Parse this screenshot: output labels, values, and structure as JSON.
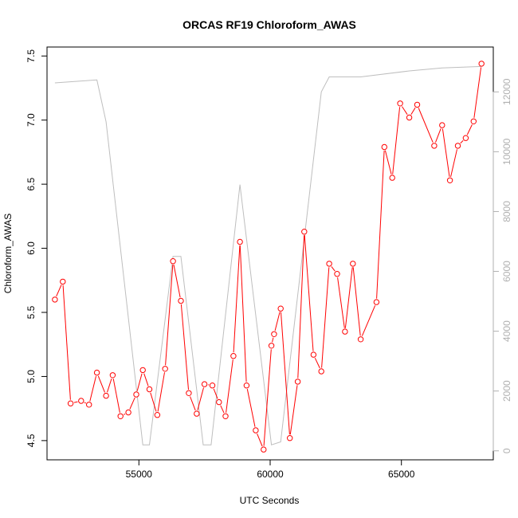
{
  "chart_data": {
    "type": "line",
    "title": "ORCAS RF19 Chloroform_AWAS",
    "xlabel": "UTC Seconds",
    "ylabel": "Chloroform_AWAS",
    "xlim": [
      51500,
      68500
    ],
    "ylim": [
      4.35,
      7.57
    ],
    "y2lim": [
      -300,
      13500
    ],
    "x_ticks": [
      55000,
      60000,
      65000
    ],
    "y_ticks": [
      4.5,
      5.0,
      5.5,
      6.0,
      6.5,
      7.0,
      7.5
    ],
    "y2_ticks": [
      0,
      2000,
      4000,
      6000,
      8000,
      10000,
      12000
    ],
    "grid": false,
    "colors": {
      "chloroform": "#ff0000",
      "altitude": "#bebebe"
    },
    "series": [
      {
        "key": "chloroform",
        "axis": "left",
        "marker": "open-circle",
        "x": [
          51800,
          52100,
          52400,
          52800,
          53100,
          53400,
          53750,
          54000,
          54300,
          54600,
          54900,
          55150,
          55400,
          55700,
          56000,
          56300,
          56600,
          56900,
          57200,
          57500,
          57800,
          58050,
          58300,
          58600,
          58850,
          59100,
          59450,
          59750,
          60050,
          60150,
          60400,
          60750,
          61050,
          61300,
          61650,
          61950,
          62250,
          62550,
          62850,
          63150,
          63450,
          64050,
          64350,
          64650,
          64950,
          65300,
          65600,
          66250,
          66550,
          66850,
          67150,
          67450,
          67750,
          68050
        ],
        "y": [
          5.6,
          5.74,
          4.79,
          4.81,
          4.78,
          5.03,
          4.85,
          5.01,
          4.69,
          4.72,
          4.86,
          5.05,
          4.9,
          4.7,
          5.06,
          5.9,
          5.59,
          4.87,
          4.71,
          4.94,
          4.93,
          4.8,
          4.69,
          5.16,
          6.05,
          4.93,
          4.58,
          4.43,
          5.24,
          5.33,
          5.53,
          4.52,
          4.96,
          6.13,
          5.17,
          5.04,
          5.88,
          5.8,
          5.35,
          5.88,
          5.29,
          5.58,
          6.79,
          6.55,
          7.13,
          7.02,
          7.12,
          6.8,
          6.96,
          6.53,
          6.8,
          6.86,
          6.99,
          7.44
        ]
      },
      {
        "key": "altitude",
        "axis": "right",
        "marker": "none",
        "x": [
          51800,
          53400,
          53750,
          55150,
          55400,
          56300,
          56600,
          57450,
          57750,
          58850,
          60050,
          60400,
          61950,
          62250,
          63450,
          65300,
          66550,
          68050
        ],
        "y": [
          12300,
          12400,
          11000,
          200,
          200,
          6500,
          6500,
          200,
          200,
          8900,
          200,
          300,
          12000,
          12500,
          12500,
          12700,
          12800,
          12850
        ]
      }
    ]
  }
}
